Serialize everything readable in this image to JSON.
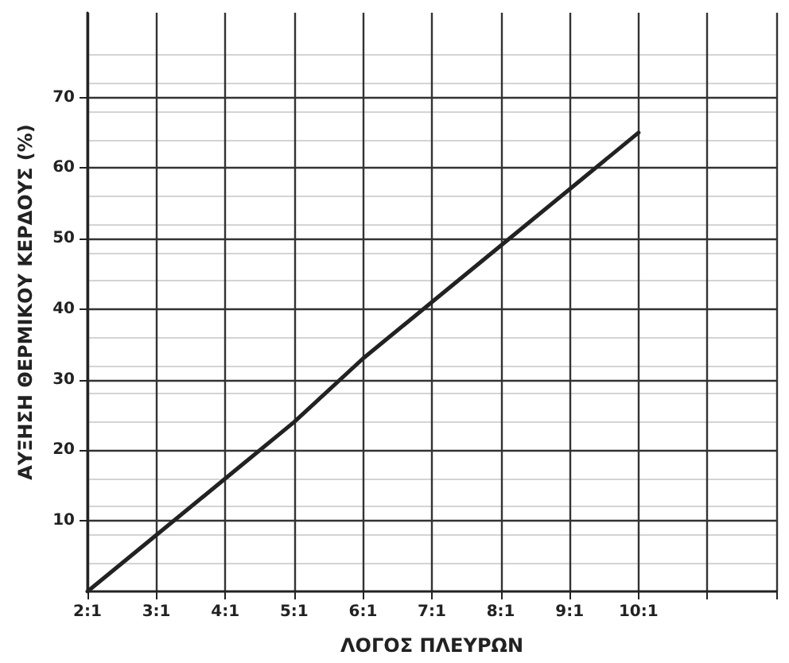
{
  "chart_data": {
    "type": "line",
    "xlabel": "ΛΟΓΟΣ ΠΛΕΥΡΩΝ",
    "ylabel": "ΑΥΞΗΣΗ ΘΕΡΜΙΚΟΥ ΚΕΡΔΟΥΣ (%)",
    "categories": [
      "2:1",
      "3:1",
      "4:1",
      "5:1",
      "6:1",
      "7:1",
      "8:1",
      "9:1",
      "10:1",
      null,
      null
    ],
    "series": [
      {
        "color": "#222222",
        "values": [
          0,
          8,
          16,
          24,
          33,
          41,
          49,
          57,
          65,
          null,
          null
        ]
      }
    ],
    "ylim": [
      0,
      82
    ],
    "yticks": [
      10,
      20,
      30,
      40,
      50,
      60,
      70
    ],
    "grid": true,
    "marker": "none",
    "line_style": "solid"
  }
}
